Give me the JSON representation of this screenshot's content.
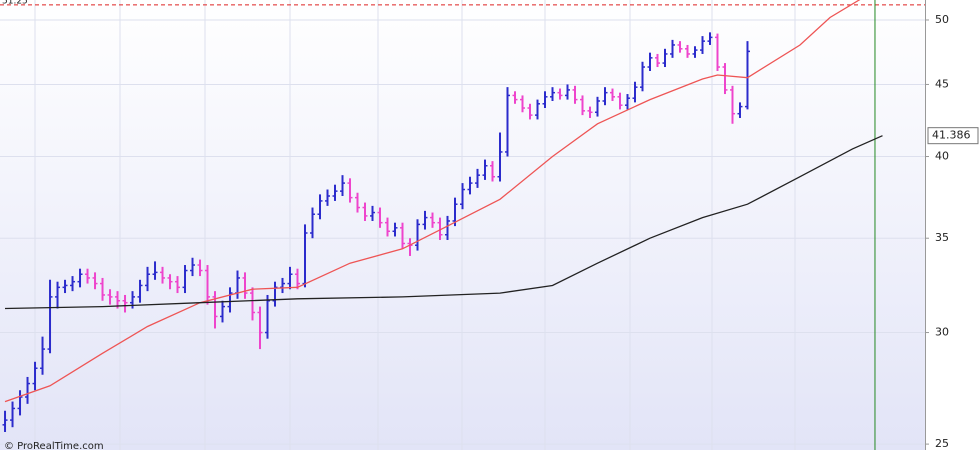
{
  "chart_data": {
    "type": "ohlc",
    "log": true,
    "grid": true,
    "ylim": [
      24.76,
      51.66
    ],
    "yticks": [
      25,
      30,
      35,
      40,
      45,
      50
    ],
    "xlim": [
      -0.67,
      122.67
    ],
    "up_color": "#2b2bcc",
    "down_color": "#ee44cc",
    "hline": 51.25,
    "hline_color": "#dd2222",
    "vline": 116,
    "vline_color": "#228822",
    "watermark": "© ProRealTime.com",
    "ohlc": [
      [
        25.8,
        26.4,
        25.5,
        26.0
      ],
      [
        26.0,
        26.8,
        25.7,
        26.5
      ],
      [
        26.5,
        27.3,
        26.2,
        27.0
      ],
      [
        27.0,
        27.9,
        26.7,
        27.6
      ],
      [
        27.6,
        28.6,
        27.3,
        28.3
      ],
      [
        28.3,
        29.8,
        28.0,
        29.2
      ],
      [
        29.2,
        32.7,
        29.0,
        31.8
      ],
      [
        31.8,
        32.6,
        31.2,
        32.3
      ],
      [
        32.3,
        32.7,
        32.0,
        32.4
      ],
      [
        32.4,
        32.9,
        32.1,
        32.6
      ],
      [
        32.6,
        33.3,
        32.3,
        33.0
      ],
      [
        33.0,
        33.3,
        32.5,
        32.8
      ],
      [
        32.8,
        33.1,
        32.2,
        32.5
      ],
      [
        32.5,
        32.8,
        31.6,
        31.9
      ],
      [
        31.9,
        32.2,
        31.4,
        31.8
      ],
      [
        31.8,
        32.1,
        31.2,
        31.6
      ],
      [
        31.6,
        31.9,
        31.0,
        31.5
      ],
      [
        31.5,
        32.1,
        31.2,
        31.8
      ],
      [
        31.8,
        32.7,
        31.5,
        32.4
      ],
      [
        32.4,
        33.4,
        32.1,
        33.0
      ],
      [
        33.0,
        33.7,
        32.7,
        33.1
      ],
      [
        33.1,
        33.4,
        32.5,
        32.8
      ],
      [
        32.8,
        33.0,
        32.2,
        32.6
      ],
      [
        32.6,
        32.9,
        32.0,
        32.3
      ],
      [
        32.3,
        33.5,
        32.0,
        33.2
      ],
      [
        33.2,
        33.9,
        32.9,
        33.5
      ],
      [
        33.5,
        33.8,
        32.9,
        33.2
      ],
      [
        33.2,
        33.5,
        31.4,
        31.8
      ],
      [
        31.8,
        32.1,
        30.2,
        30.8
      ],
      [
        30.8,
        31.6,
        30.5,
        31.3
      ],
      [
        31.3,
        32.3,
        31.0,
        32.0
      ],
      [
        32.0,
        33.2,
        31.7,
        32.8
      ],
      [
        32.8,
        33.1,
        31.7,
        32.0
      ],
      [
        32.0,
        32.3,
        30.6,
        31.0
      ],
      [
        31.0,
        31.3,
        29.2,
        30.0
      ],
      [
        30.0,
        31.9,
        29.7,
        31.6
      ],
      [
        31.6,
        32.6,
        31.3,
        32.3
      ],
      [
        32.3,
        32.8,
        32.0,
        32.5
      ],
      [
        32.5,
        33.4,
        32.2,
        33.0
      ],
      [
        33.0,
        33.3,
        32.2,
        32.5
      ],
      [
        32.5,
        35.8,
        32.3,
        35.3
      ],
      [
        35.3,
        36.8,
        35.0,
        36.4
      ],
      [
        36.4,
        37.6,
        36.1,
        37.2
      ],
      [
        37.2,
        37.9,
        36.9,
        37.5
      ],
      [
        37.5,
        38.2,
        37.2,
        37.8
      ],
      [
        37.8,
        38.8,
        37.5,
        38.3
      ],
      [
        38.3,
        38.6,
        37.1,
        37.4
      ],
      [
        37.4,
        37.7,
        36.5,
        36.8
      ],
      [
        36.8,
        37.1,
        36.0,
        36.3
      ],
      [
        36.3,
        36.9,
        36.0,
        36.5
      ],
      [
        36.5,
        36.8,
        35.6,
        35.9
      ],
      [
        35.9,
        36.2,
        35.1,
        35.4
      ],
      [
        35.4,
        35.9,
        35.1,
        35.6
      ],
      [
        35.6,
        35.9,
        34.4,
        34.7
      ],
      [
        34.7,
        35.0,
        34.0,
        34.6
      ],
      [
        34.6,
        36.1,
        34.3,
        35.8
      ],
      [
        35.8,
        36.6,
        35.5,
        36.2
      ],
      [
        36.2,
        36.5,
        35.6,
        35.9
      ],
      [
        35.9,
        36.2,
        34.9,
        35.2
      ],
      [
        35.2,
        36.3,
        34.9,
        36.0
      ],
      [
        36.0,
        37.4,
        35.7,
        37.0
      ],
      [
        37.0,
        38.3,
        36.7,
        37.9
      ],
      [
        37.9,
        38.7,
        37.6,
        38.3
      ],
      [
        38.3,
        39.2,
        38.0,
        38.8
      ],
      [
        38.8,
        39.8,
        38.5,
        39.4
      ],
      [
        39.4,
        39.7,
        38.4,
        38.7
      ],
      [
        38.7,
        41.6,
        38.4,
        40.3
      ],
      [
        40.3,
        44.8,
        40.0,
        44.2
      ],
      [
        44.2,
        44.5,
        43.6,
        43.9
      ],
      [
        43.9,
        44.2,
        43.0,
        43.3
      ],
      [
        43.3,
        43.6,
        42.5,
        42.8
      ],
      [
        42.8,
        43.9,
        42.5,
        43.6
      ],
      [
        43.6,
        44.5,
        43.3,
        44.1
      ],
      [
        44.1,
        44.8,
        43.8,
        44.4
      ],
      [
        44.4,
        44.7,
        43.9,
        44.2
      ],
      [
        44.2,
        45.0,
        43.9,
        44.6
      ],
      [
        44.6,
        44.9,
        43.6,
        43.9
      ],
      [
        43.9,
        44.2,
        42.8,
        43.1
      ],
      [
        43.1,
        43.4,
        42.6,
        43.0
      ],
      [
        43.0,
        44.1,
        42.7,
        43.8
      ],
      [
        43.8,
        44.8,
        43.5,
        44.4
      ],
      [
        44.4,
        44.7,
        43.8,
        44.1
      ],
      [
        44.1,
        44.4,
        43.2,
        43.5
      ],
      [
        43.5,
        44.3,
        43.2,
        44.0
      ],
      [
        44.0,
        45.2,
        43.7,
        44.8
      ],
      [
        44.8,
        46.7,
        44.5,
        46.3
      ],
      [
        46.3,
        47.4,
        46.0,
        47.0
      ],
      [
        47.0,
        47.3,
        46.3,
        46.6
      ],
      [
        46.6,
        47.7,
        46.3,
        47.3
      ],
      [
        47.3,
        48.4,
        47.0,
        48.0
      ],
      [
        48.0,
        48.3,
        47.4,
        47.7
      ],
      [
        47.7,
        48.0,
        47.0,
        47.3
      ],
      [
        47.3,
        47.9,
        47.0,
        47.6
      ],
      [
        47.6,
        48.7,
        47.3,
        48.3
      ],
      [
        48.3,
        49.0,
        48.0,
        48.6
      ],
      [
        48.6,
        48.9,
        46.0,
        46.3
      ],
      [
        46.3,
        46.6,
        44.3,
        44.6
      ],
      [
        44.6,
        44.9,
        42.2,
        42.9
      ],
      [
        42.9,
        43.7,
        42.6,
        43.4
      ],
      [
        43.4,
        48.3,
        43.2,
        47.5
      ]
    ],
    "series": [
      {
        "color": "#ee5555",
        "x": [
          0,
          6,
          13,
          19,
          26,
          33,
          39,
          46,
          53,
          59,
          66,
          73,
          79,
          86,
          93,
          95,
          99,
          106,
          110,
          114
        ],
        "values": [
          26.8,
          27.5,
          29.0,
          30.3,
          31.5,
          32.2,
          32.3,
          33.6,
          34.4,
          35.7,
          37.3,
          40.0,
          42.2,
          43.9,
          45.4,
          45.7,
          45.5,
          48.0,
          50.2,
          51.7
        ]
      },
      {
        "color": "#222222",
        "x": [
          0,
          13,
          26,
          39,
          53,
          66,
          73,
          79,
          86,
          93,
          99,
          106,
          113,
          117
        ],
        "values": [
          31.2,
          31.3,
          31.5,
          31.7,
          31.8,
          32.0,
          32.4,
          33.6,
          35.0,
          36.2,
          37.0,
          38.7,
          40.5,
          41.386
        ]
      }
    ]
  }
}
